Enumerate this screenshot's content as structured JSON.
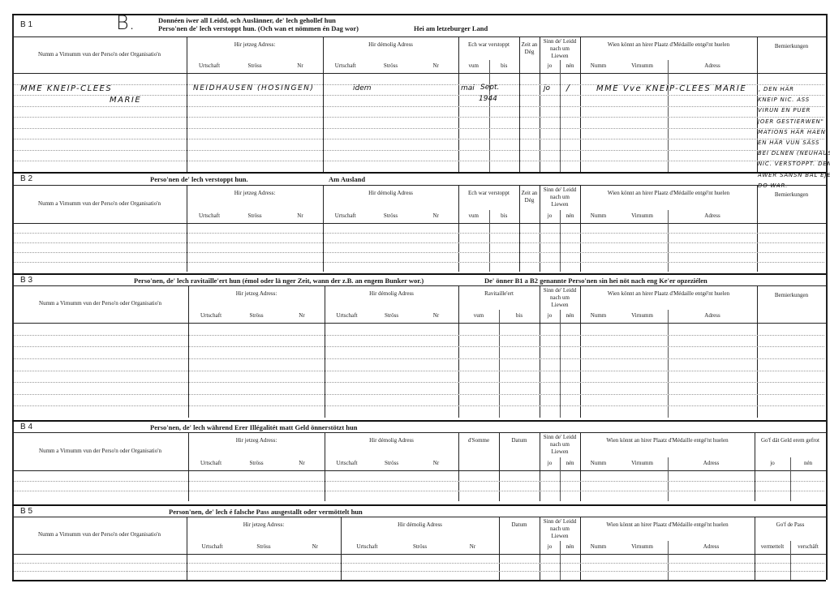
{
  "form_letter": "B.",
  "common": {
    "name_col": "Numm a Virnumm vun der Perso'n oder Organisatio'n",
    "current_address": "Hir jetzeg Adress:",
    "former_address": "Hir démolig Adress",
    "address_sub": [
      "Urtschaft",
      "Ströss",
      "Nr"
    ],
    "survived": "Sinn de' Leidd nach um Liewen",
    "yes_no": [
      "jo",
      "nén"
    ],
    "medal": "Wien könnt an hirer Plaatz d'Médaille entgé'nt huelen",
    "medal_sub": [
      "Numm",
      "Virnumm",
      "Adress"
    ],
    "remarks": "Bemierkungen"
  },
  "sections": [
    {
      "code": "B 1",
      "title_line1": "Donnéen iwer all Leidd, och Auslänner, de' lech gehollef hun",
      "title_line2": "Perso'nen de' lech verstoppt hun. (Och wan et nömmen én Dag wor)",
      "title_right": "Hei am letzeburger Land",
      "cols": [
        {
          "label": "Ech war verstoppt",
          "sub": [
            "vum",
            "bis"
          ]
        },
        {
          "label": "Zeit an Dég"
        }
      ]
    },
    {
      "code": "B 2",
      "title_line1": "Perso'nen de' lech verstoppt hun.",
      "title_right": "Am Ausland",
      "cols": [
        {
          "label": "Ech war verstoppt",
          "sub": [
            "vum",
            "bis"
          ]
        },
        {
          "label": "Zeit an Dég"
        }
      ]
    },
    {
      "code": "B 3",
      "title_line1": "Perso'nen, de' lech ravitaille'ert hun (émol oder lä nger Zeit, wann der z.B. an engem Bunker wor.)",
      "title_right": "De' önner B1 a B2 genannte Perso'nen sin hei nöt nach eng Ke'er opzeziélen",
      "cols": [
        {
          "label": "Ravitaille'ert",
          "sub": [
            "vum",
            "bis"
          ]
        }
      ]
    },
    {
      "code": "B 4",
      "title_line1": "Perso'nen, de' lech während Erer Illégalitét matt Geld önnerstötzt hun",
      "cols": [
        {
          "label": "d'Somme"
        },
        {
          "label": "Datum"
        }
      ],
      "last_col": {
        "label": "Go'f dät Geld erem gefrot",
        "sub": [
          "jo",
          "nén"
        ]
      }
    },
    {
      "code": "B 5",
      "title_line1": "Person'nen, de' lech é falsche Pass ausgestallt oder vermöttelt hun",
      "cols": [
        {
          "label": "Datum"
        }
      ],
      "last_col": {
        "label": "Go'f de Pass",
        "sub": [
          "vermettelt",
          "verschäft"
        ]
      }
    }
  ],
  "entry_b1": {
    "name_line1": "MME KNEIP-CLEES",
    "name_line2": "MARIE",
    "current_address": "NEIDHAUSEN (HOSINGEN)",
    "former_address": "idem",
    "from": "mai",
    "until_line1": "Sept.",
    "until_line2": "1944",
    "survived_yes": "jo",
    "survived_no": "/",
    "medal_recipient": "MME Vve KNEIP-CLEES MARIE",
    "remarks": [
      ", DEN HÄR",
      "KNEIP NIC. ASS",
      "VIRUN EN PUER",
      "JOER GESTIERWEN\"",
      "MATIONS HÄR HAEN",
      "EN HÄR VUN SÄSS",
      "BEI DLNEN (NEUHAUS)",
      "NIC. VERSTOPPT. DEN",
      "AWER SANSN BAL EJER",
      "DO WAR."
    ]
  }
}
